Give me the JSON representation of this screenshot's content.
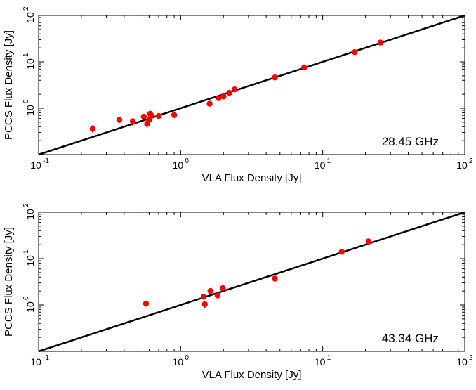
{
  "chart_data": [
    {
      "type": "scatter",
      "xlabel": "VLA Flux Density [Jy]",
      "ylabel": "PCCS Flux Density [Jy]",
      "annotation": "28.45 GHz",
      "xscale": "log",
      "yscale": "log",
      "xlim": [
        0.1,
        100
      ],
      "ylim": [
        0.1,
        100
      ],
      "xticks": [
        {
          "value": 0.1,
          "base": "10",
          "exp": "-1"
        },
        {
          "value": 1,
          "base": "10",
          "exp": "0"
        },
        {
          "value": 10,
          "base": "10",
          "exp": "1"
        },
        {
          "value": 100,
          "base": "10",
          "exp": "2"
        }
      ],
      "yticks": [
        {
          "value": 1,
          "base": "10",
          "exp": "0"
        },
        {
          "value": 10,
          "base": "10",
          "exp": "1"
        },
        {
          "value": 100,
          "base": "10",
          "exp": "2"
        }
      ],
      "line": {
        "description": "one-to-one",
        "x": [
          0.1,
          100
        ],
        "y": [
          0.1,
          100
        ],
        "color": "#000000"
      },
      "marker_color": "#ff0000",
      "points": [
        {
          "x": 0.24,
          "y": 0.36,
          "ylo": 0.3,
          "yhi": 0.43
        },
        {
          "x": 0.37,
          "y": 0.56,
          "ylo": 0.48,
          "yhi": 0.64
        },
        {
          "x": 0.46,
          "y": 0.52,
          "ylo": 0.42,
          "yhi": 0.61
        },
        {
          "x": 0.55,
          "y": 0.66,
          "ylo": 0.59,
          "yhi": 0.73
        },
        {
          "x": 0.58,
          "y": 0.46,
          "ylo": 0.38,
          "yhi": 0.55
        },
        {
          "x": 0.6,
          "y": 0.56,
          "ylo": 0.5,
          "yhi": 0.63
        },
        {
          "x": 0.61,
          "y": 0.76,
          "ylo": 0.69,
          "yhi": 0.83
        },
        {
          "x": 0.62,
          "y": 0.7,
          "ylo": 0.63,
          "yhi": 0.77
        },
        {
          "x": 0.7,
          "y": 0.68,
          "ylo": 0.61,
          "yhi": 0.75
        },
        {
          "x": 0.9,
          "y": 0.72,
          "ylo": 0.61,
          "yhi": 0.83
        },
        {
          "x": 1.6,
          "y": 1.25,
          "ylo": 1.15,
          "yhi": 1.35
        },
        {
          "x": 1.85,
          "y": 1.65,
          "ylo": 1.55,
          "yhi": 1.75
        },
        {
          "x": 2.0,
          "y": 1.8,
          "ylo": 1.7,
          "yhi": 1.9
        },
        {
          "x": 2.2,
          "y": 2.15,
          "ylo": 2.05,
          "yhi": 2.25
        },
        {
          "x": 2.4,
          "y": 2.55,
          "ylo": 2.45,
          "yhi": 2.65
        },
        {
          "x": 4.6,
          "y": 4.6,
          "ylo": 4.4,
          "yhi": 4.8
        },
        {
          "x": 7.4,
          "y": 7.6,
          "ylo": 7.3,
          "yhi": 7.9
        },
        {
          "x": 16.8,
          "y": 16.2,
          "ylo": 15.6,
          "yhi": 16.8
        },
        {
          "x": 25.5,
          "y": 26.0,
          "ylo": 25.0,
          "yhi": 27.0
        }
      ]
    },
    {
      "type": "scatter",
      "xlabel": "VLA Flux Density [Jy]",
      "ylabel": "PCCS Flux Density [Jy]",
      "annotation": "43.34 GHz",
      "xscale": "log",
      "yscale": "log",
      "xlim": [
        0.1,
        100
      ],
      "ylim": [
        0.1,
        100
      ],
      "xticks": [
        {
          "value": 0.1,
          "base": "10",
          "exp": "-1"
        },
        {
          "value": 1,
          "base": "10",
          "exp": "0"
        },
        {
          "value": 10,
          "base": "10",
          "exp": "1"
        },
        {
          "value": 100,
          "base": "10",
          "exp": "2"
        }
      ],
      "yticks": [
        {
          "value": 1,
          "base": "10",
          "exp": "0"
        },
        {
          "value": 10,
          "base": "10",
          "exp": "1"
        },
        {
          "value": 100,
          "base": "10",
          "exp": "2"
        }
      ],
      "line": {
        "description": "one-to-one",
        "x": [
          0.1,
          100
        ],
        "y": [
          0.1,
          100
        ],
        "color": "#000000"
      },
      "marker_color": "#ff0000",
      "points": [
        {
          "x": 0.57,
          "y": 1.07,
          "ylo": 0.92,
          "yhi": 1.22
        },
        {
          "x": 1.45,
          "y": 1.5,
          "ylo": 1.36,
          "yhi": 1.64
        },
        {
          "x": 1.48,
          "y": 1.04,
          "ylo": 0.86,
          "yhi": 1.22
        },
        {
          "x": 1.62,
          "y": 2.0,
          "ylo": 1.86,
          "yhi": 2.14
        },
        {
          "x": 1.82,
          "y": 1.6,
          "ylo": 1.45,
          "yhi": 1.75
        },
        {
          "x": 1.98,
          "y": 2.3,
          "ylo": 2.15,
          "yhi": 2.45
        },
        {
          "x": 4.6,
          "y": 3.7,
          "ylo": 3.5,
          "yhi": 3.9
        },
        {
          "x": 13.6,
          "y": 14.0,
          "ylo": 13.4,
          "yhi": 14.6
        },
        {
          "x": 21.0,
          "y": 23.5,
          "ylo": 22.6,
          "yhi": 24.4
        }
      ]
    }
  ]
}
